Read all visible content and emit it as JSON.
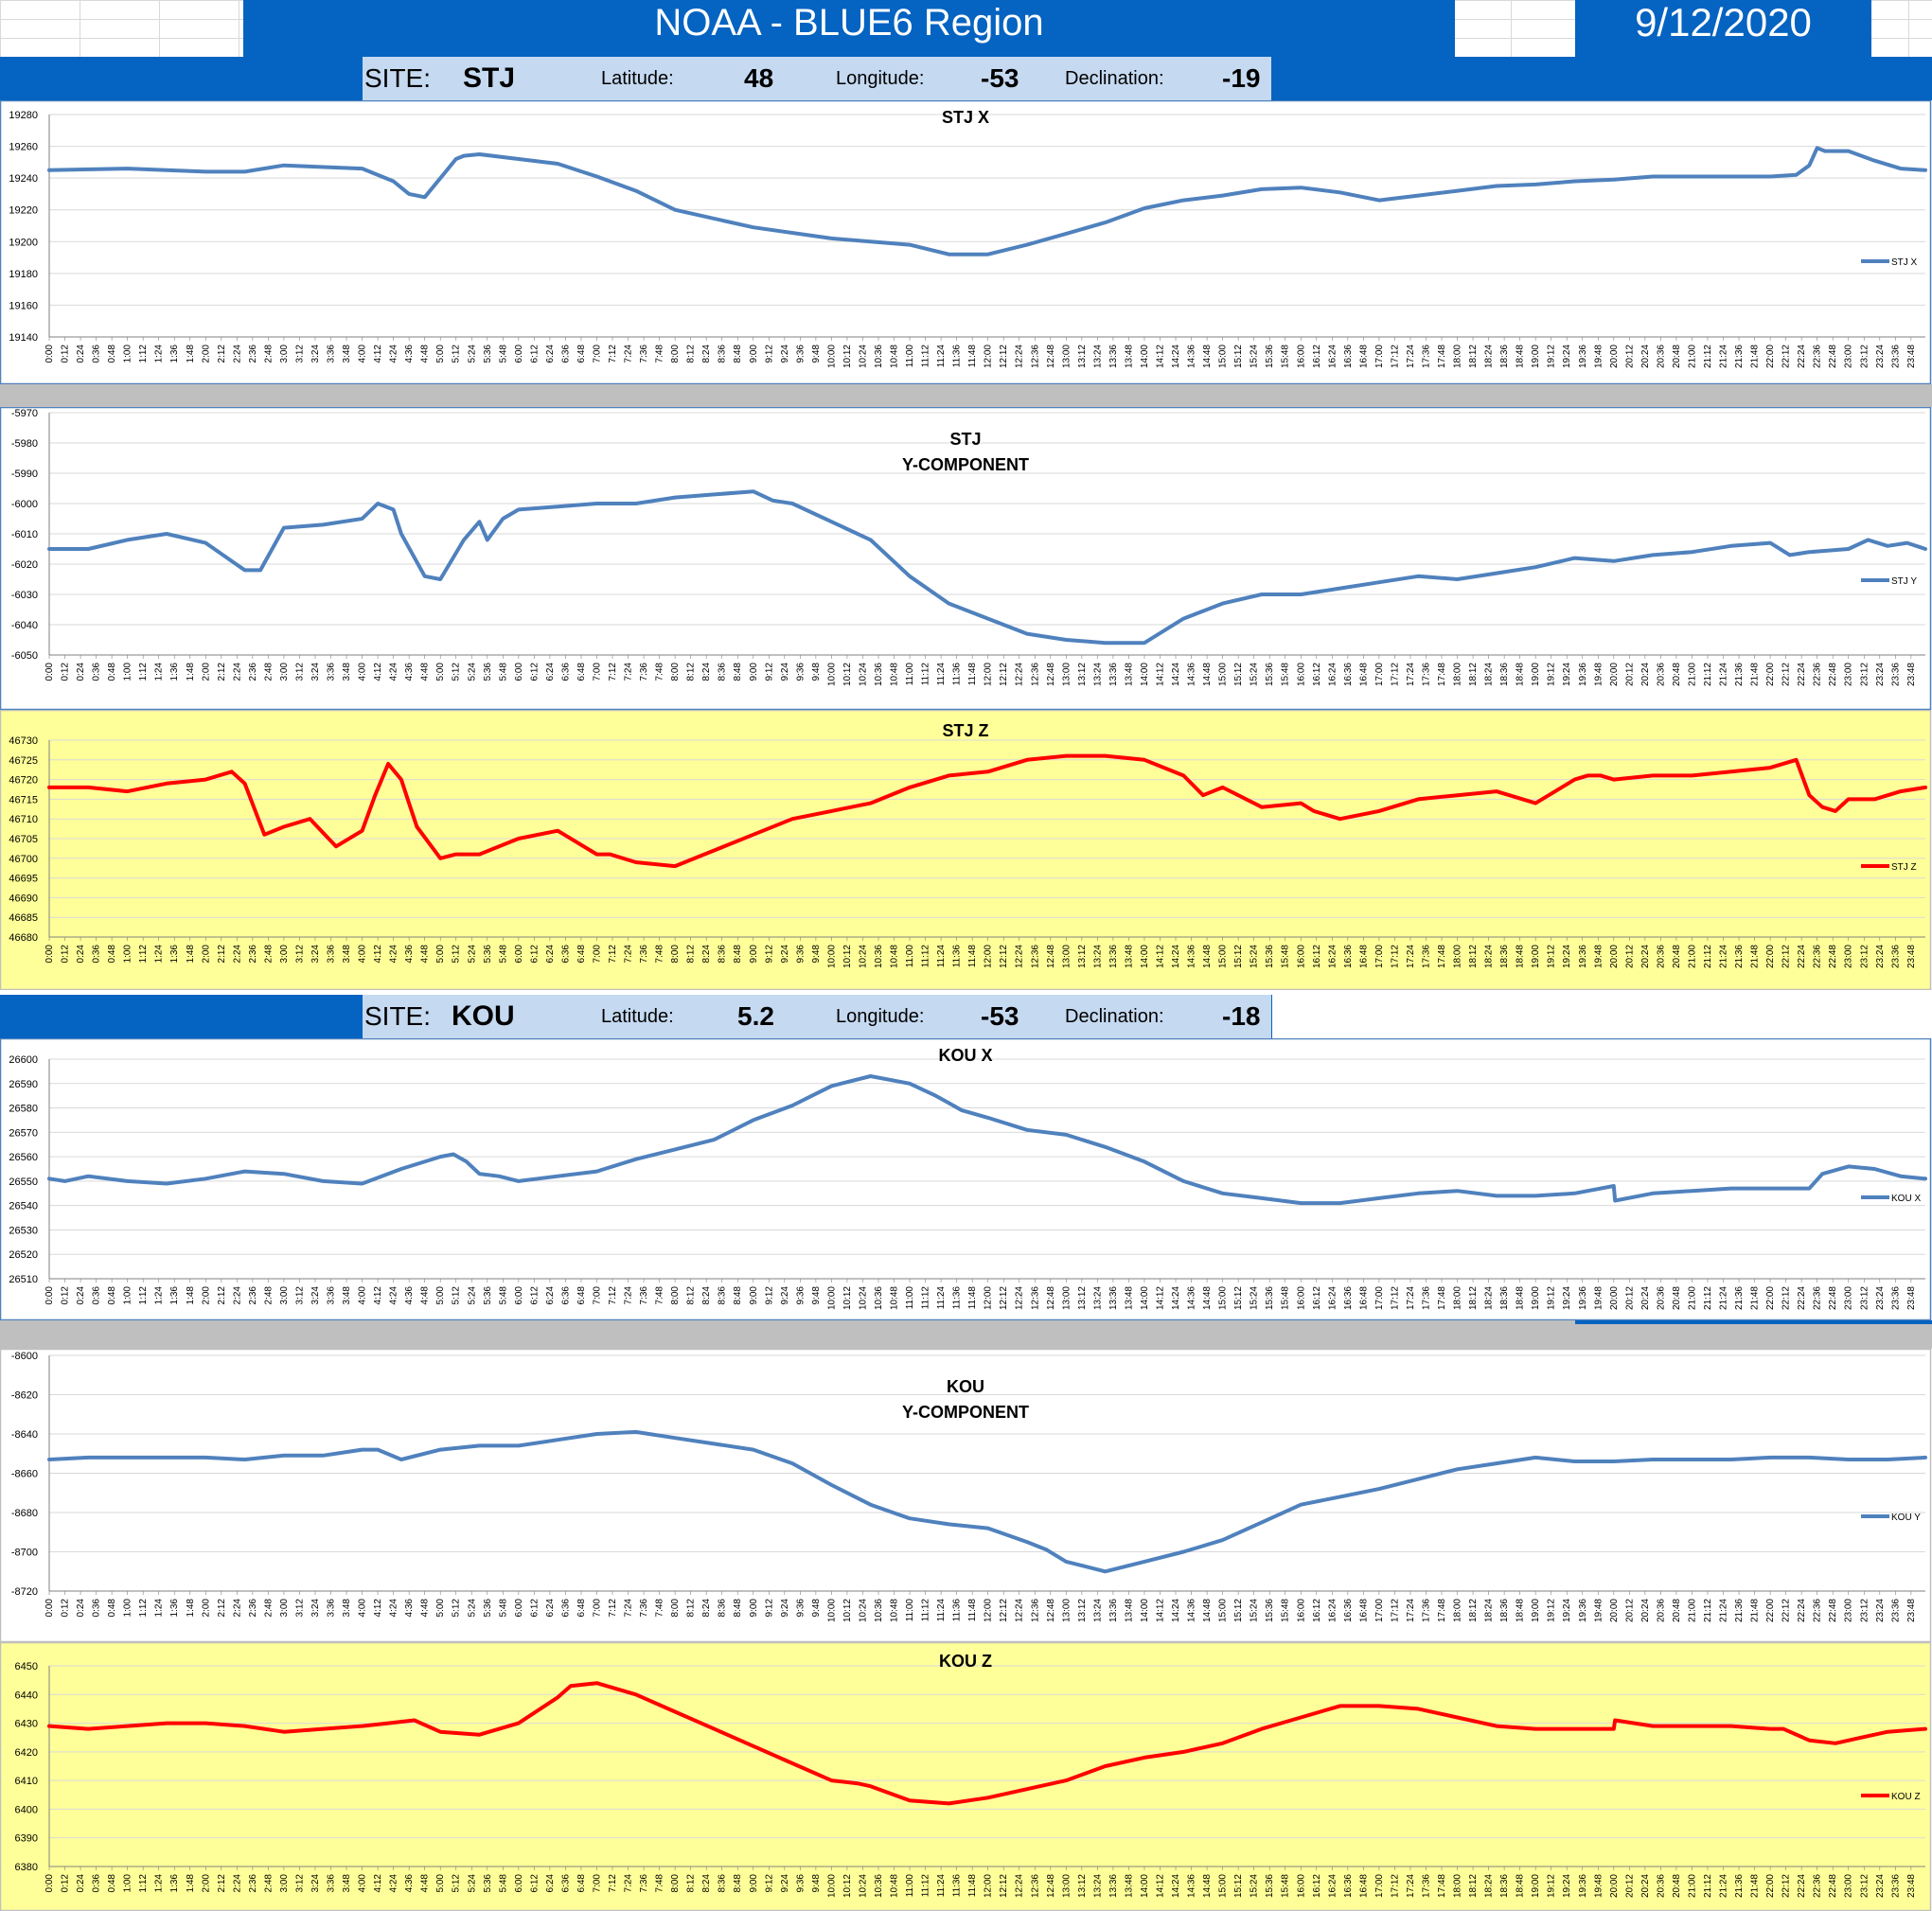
{
  "header": {
    "title": "NOAA - BLUE6 Region",
    "date": "9/12/2020"
  },
  "sites": [
    {
      "site_label": "SITE:",
      "site": "STJ",
      "latitude_label": "Latitude:",
      "latitude": "48",
      "longitude_label": "Longitude:",
      "longitude": "-53",
      "declination_label": "Declination:",
      "declination": "-19"
    },
    {
      "site_label": "SITE:",
      "site": "KOU",
      "latitude_label": "Latitude:",
      "latitude": "5.2",
      "longitude_label": "Longitude:",
      "longitude": "-53",
      "declination_label": "Declination:",
      "declination": "-18"
    }
  ],
  "colors": {
    "blue_series": "#4f81bd",
    "red_series": "#ff0000",
    "yellow_bg": "#ffff99",
    "header_blue": "#0563c1"
  },
  "chart_data": [
    {
      "type": "line",
      "title": [
        "STJ X"
      ],
      "legend": "STJ X",
      "legend_position": "right",
      "ylim": [
        19140,
        19280
      ],
      "y_ticks": [
        19140,
        19160,
        19180,
        19200,
        19220,
        19240,
        19260,
        19280
      ],
      "x_tick_step_min": 12,
      "grid": true,
      "series": [
        {
          "name": "STJ X",
          "x_min": [
            0,
            60,
            120,
            150,
            180,
            240,
            264,
            276,
            288,
            306,
            312,
            318,
            330,
            360,
            390,
            420,
            450,
            480,
            540,
            600,
            660,
            690,
            720,
            750,
            780,
            810,
            840,
            870,
            900,
            930,
            960,
            990,
            1020,
            1050,
            1080,
            1110,
            1140,
            1170,
            1200,
            1230,
            1260,
            1290,
            1320,
            1340,
            1350,
            1356,
            1362,
            1380,
            1400,
            1420,
            1439
          ],
          "values": [
            19245,
            19246,
            19244,
            19244,
            19248,
            19246,
            19238,
            19230,
            19228,
            19246,
            19252,
            19254,
            19255,
            19252,
            19249,
            19241,
            19232,
            19220,
            19209,
            19202,
            19198,
            19192,
            19192,
            19198,
            19205,
            19212,
            19221,
            19226,
            19229,
            19233,
            19234,
            19231,
            19226,
            19229,
            19232,
            19235,
            19236,
            19238,
            19239,
            19241,
            19241,
            19241,
            19241,
            19242,
            19248,
            19259,
            19257,
            19257,
            19251,
            19246,
            19245
          ]
        }
      ]
    },
    {
      "type": "line",
      "title": [
        "STJ",
        "Y-COMPONENT"
      ],
      "legend": "STJ Y",
      "legend_position": "right",
      "ylim": [
        -6050,
        -5970
      ],
      "y_ticks": [
        -6050,
        -6040,
        -6030,
        -6020,
        -6010,
        -6000,
        -5990,
        -5980,
        -5970
      ],
      "x_tick_step_min": 12,
      "grid": true,
      "series": [
        {
          "name": "STJ Y",
          "x_min": [
            0,
            30,
            60,
            90,
            120,
            150,
            162,
            180,
            210,
            240,
            252,
            264,
            270,
            288,
            300,
            318,
            330,
            336,
            348,
            360,
            390,
            420,
            450,
            480,
            510,
            540,
            555,
            570,
            600,
            630,
            660,
            690,
            720,
            750,
            780,
            810,
            840,
            870,
            900,
            930,
            960,
            990,
            1020,
            1050,
            1080,
            1110,
            1140,
            1170,
            1200,
            1230,
            1260,
            1290,
            1320,
            1335,
            1350,
            1380,
            1395,
            1410,
            1425,
            1439
          ],
          "values": [
            -6015,
            -6015,
            -6012,
            -6010,
            -6013,
            -6022,
            -6022,
            -6008,
            -6007,
            -6005,
            -6000,
            -6002,
            -6010,
            -6024,
            -6025,
            -6012,
            -6006,
            -6012,
            -6005,
            -6002,
            -6001,
            -6000,
            -6000,
            -5998,
            -5997,
            -5996,
            -5999,
            -6000,
            -6006,
            -6012,
            -6024,
            -6033,
            -6038,
            -6043,
            -6045,
            -6046,
            -6046,
            -6038,
            -6033,
            -6030,
            -6030,
            -6028,
            -6026,
            -6024,
            -6025,
            -6023,
            -6021,
            -6018,
            -6019,
            -6017,
            -6016,
            -6014,
            -6013,
            -6017,
            -6016,
            -6015,
            -6012,
            -6014,
            -6013,
            -6015
          ]
        }
      ]
    },
    {
      "type": "line",
      "title": [
        "STJ Z"
      ],
      "legend": "STJ Z",
      "legend_position": "right",
      "ylim": [
        46680,
        46730
      ],
      "y_ticks": [
        46680,
        46685,
        46690,
        46695,
        46700,
        46705,
        46710,
        46715,
        46720,
        46725,
        46730
      ],
      "x_tick_step_min": 12,
      "grid": true,
      "series": [
        {
          "name": "STJ Z",
          "x_min": [
            0,
            30,
            60,
            90,
            120,
            140,
            150,
            165,
            180,
            200,
            220,
            240,
            250,
            260,
            270,
            276,
            282,
            300,
            312,
            330,
            360,
            390,
            420,
            430,
            450,
            480,
            510,
            540,
            570,
            600,
            630,
            660,
            690,
            720,
            750,
            780,
            810,
            840,
            870,
            885,
            900,
            930,
            960,
            970,
            990,
            1020,
            1050,
            1080,
            1110,
            1140,
            1170,
            1180,
            1190,
            1200,
            1230,
            1260,
            1290,
            1320,
            1340,
            1350,
            1360,
            1370,
            1380,
            1400,
            1420,
            1439
          ],
          "values": [
            46718,
            46718,
            46717,
            46719,
            46720,
            46722,
            46719,
            46706,
            46708,
            46710,
            46703,
            46707,
            46716,
            46724,
            46720,
            46714,
            46708,
            46700,
            46701,
            46701,
            46705,
            46707,
            46701,
            46701,
            46699,
            46698,
            46702,
            46706,
            46710,
            46712,
            46714,
            46718,
            46721,
            46722,
            46725,
            46726,
            46726,
            46725,
            46721,
            46716,
            46718,
            46713,
            46714,
            46712,
            46710,
            46712,
            46715,
            46716,
            46717,
            46714,
            46720,
            46721,
            46721,
            46720,
            46721,
            46721,
            46722,
            46723,
            46725,
            46716,
            46713,
            46712,
            46715,
            46715,
            46717,
            46718
          ]
        }
      ]
    },
    {
      "type": "line",
      "title": [
        "KOU X"
      ],
      "legend": "KOU X",
      "legend_position": "right",
      "ylim": [
        26510,
        26600
      ],
      "y_ticks": [
        26510,
        26520,
        26530,
        26540,
        26550,
        26560,
        26570,
        26580,
        26590,
        26600
      ],
      "x_tick_step_min": 12,
      "grid": true,
      "series": [
        {
          "name": "KOU X",
          "x_min": [
            0,
            12,
            30,
            60,
            90,
            120,
            150,
            180,
            210,
            240,
            270,
            300,
            310,
            320,
            330,
            345,
            360,
            390,
            420,
            450,
            480,
            510,
            540,
            570,
            585,
            600,
            630,
            660,
            680,
            690,
            700,
            720,
            750,
            780,
            810,
            840,
            870,
            900,
            930,
            960,
            990,
            1020,
            1050,
            1080,
            1110,
            1140,
            1170,
            1200,
            1201,
            1230,
            1260,
            1290,
            1320,
            1340,
            1350,
            1360,
            1380,
            1400,
            1420,
            1439
          ],
          "values": [
            26551,
            26550,
            26552,
            26550,
            26549,
            26551,
            26554,
            26553,
            26550,
            26549,
            26555,
            26560,
            26561,
            26558,
            26553,
            26552,
            26550,
            26552,
            26554,
            26559,
            26563,
            26567,
            26575,
            26581,
            26585,
            26589,
            26593,
            26590,
            26585,
            26582,
            26579,
            26576,
            26571,
            26569,
            26564,
            26558,
            26550,
            26545,
            26543,
            26541,
            26541,
            26543,
            26545,
            26546,
            26544,
            26544,
            26545,
            26548,
            26542,
            26545,
            26546,
            26547,
            26547,
            26547,
            26547,
            26553,
            26556,
            26555,
            26552,
            26551
          ]
        }
      ]
    },
    {
      "type": "line",
      "title": [
        "KOU",
        "Y-COMPONENT"
      ],
      "legend": "KOU Y",
      "legend_position": "right",
      "ylim": [
        -8720,
        -8600
      ],
      "y_ticks": [
        -8720,
        -8700,
        -8680,
        -8660,
        -8640,
        -8620,
        -8600
      ],
      "x_tick_step_min": 12,
      "grid": true,
      "series": [
        {
          "name": "KOU Y",
          "x_min": [
            0,
            30,
            60,
            90,
            120,
            150,
            180,
            210,
            240,
            252,
            270,
            300,
            330,
            360,
            390,
            420,
            450,
            480,
            510,
            540,
            570,
            600,
            630,
            660,
            690,
            720,
            750,
            765,
            780,
            810,
            840,
            870,
            900,
            930,
            960,
            990,
            1020,
            1050,
            1080,
            1110,
            1140,
            1170,
            1200,
            1230,
            1260,
            1290,
            1320,
            1350,
            1380,
            1410,
            1439
          ],
          "values": [
            -8653,
            -8652,
            -8652,
            -8652,
            -8652,
            -8653,
            -8651,
            -8651,
            -8648,
            -8648,
            -8653,
            -8648,
            -8646,
            -8646,
            -8643,
            -8640,
            -8639,
            -8642,
            -8645,
            -8648,
            -8655,
            -8666,
            -8676,
            -8683,
            -8686,
            -8688,
            -8695,
            -8699,
            -8705,
            -8710,
            -8705,
            -8700,
            -8694,
            -8685,
            -8676,
            -8672,
            -8668,
            -8663,
            -8658,
            -8655,
            -8652,
            -8654,
            -8654,
            -8653,
            -8653,
            -8653,
            -8652,
            -8652,
            -8653,
            -8653,
            -8652
          ]
        }
      ]
    },
    {
      "type": "line",
      "title": [
        "KOU Z"
      ],
      "legend": "KOU Z",
      "legend_position": "right",
      "ylim": [
        6380,
        6450
      ],
      "y_ticks": [
        6380,
        6390,
        6400,
        6410,
        6420,
        6430,
        6440,
        6450
      ],
      "x_tick_step_min": 12,
      "grid": true,
      "series": [
        {
          "name": "KOU Z",
          "x_min": [
            0,
            30,
            60,
            90,
            120,
            150,
            180,
            210,
            240,
            260,
            280,
            300,
            330,
            360,
            390,
            400,
            420,
            450,
            480,
            510,
            540,
            570,
            600,
            620,
            630,
            660,
            690,
            720,
            750,
            780,
            810,
            840,
            870,
            900,
            930,
            960,
            990,
            1020,
            1050,
            1080,
            1110,
            1140,
            1170,
            1200,
            1201,
            1230,
            1260,
            1290,
            1320,
            1330,
            1350,
            1370,
            1390,
            1410,
            1439
          ],
          "values": [
            6429,
            6428,
            6429,
            6430,
            6430,
            6429,
            6427,
            6428,
            6429,
            6430,
            6431,
            6427,
            6426,
            6430,
            6439,
            6443,
            6444,
            6440,
            6434,
            6428,
            6422,
            6416,
            6410,
            6409,
            6408,
            6403,
            6402,
            6404,
            6407,
            6410,
            6415,
            6418,
            6420,
            6423,
            6428,
            6432,
            6436,
            6436,
            6435,
            6432,
            6429,
            6428,
            6428,
            6428,
            6431,
            6429,
            6429,
            6429,
            6428,
            6428,
            6424,
            6423,
            6425,
            6427,
            6428
          ]
        }
      ]
    }
  ]
}
